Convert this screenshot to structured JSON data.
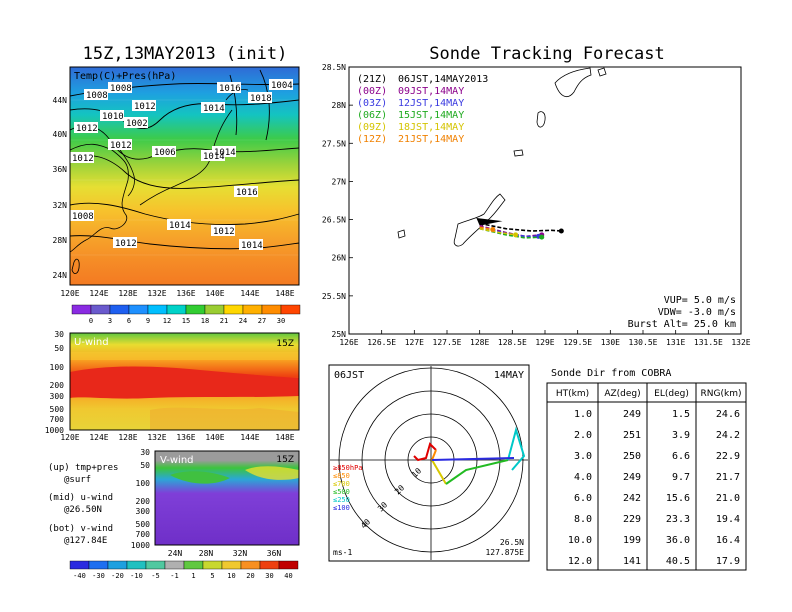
{
  "left_title": "15Z,13MAY2013 (init)",
  "map_panel": {
    "label": "Temp(C)+Pres(hPa)",
    "lat_ticks": [
      "44N",
      "40N",
      "36N",
      "32N",
      "28N",
      "24N"
    ],
    "lon_ticks": [
      "120E",
      "124E",
      "128E",
      "132E",
      "136E",
      "140E",
      "144E",
      "148E"
    ],
    "isobar_labels": [
      "1008",
      "1008",
      "1012",
      "1014",
      "1016",
      "1018",
      "1004",
      "1010",
      "1002",
      "1012",
      "1012",
      "1006",
      "1012",
      "1014",
      "1014",
      "1016",
      "1008",
      "1014",
      "1012",
      "1012",
      "1014"
    ],
    "colorbar": [
      "0",
      "3",
      "6",
      "9",
      "12",
      "15",
      "18",
      "21",
      "24",
      "27",
      "30"
    ],
    "colorbar_colors": [
      "#8a2be2",
      "#6a5acd",
      "#1e5ff0",
      "#1e90ff",
      "#00bfff",
      "#00d2c8",
      "#32cd32",
      "#9acd32",
      "#ffd700",
      "#ffb000",
      "#ff8c00",
      "#ff4500"
    ]
  },
  "u_panel": {
    "label": "U-wind",
    "time": "15Z",
    "p_ticks": [
      "30",
      "50",
      "100",
      "200",
      "300",
      "500",
      "700",
      "1000"
    ],
    "lon_ticks": [
      "120E",
      "124E",
      "128E",
      "132E",
      "136E",
      "140E",
      "144E",
      "148E"
    ]
  },
  "v_panel": {
    "label": "V-wind",
    "time": "15Z",
    "p_ticks": [
      "30",
      "50",
      "100",
      "200",
      "300",
      "500",
      "700",
      "1000"
    ],
    "lat_ticks": [
      "24N",
      "28N",
      "32N",
      "36N"
    ]
  },
  "legend_text": {
    "up": "(up) tmp+pres",
    "up2": "@surf",
    "mid": "(mid) u-wind",
    "mid2": "@26.50N",
    "bot": "(bot) v-wind",
    "bot2": "@127.84E"
  },
  "wind_colorbar": [
    "-40",
    "-30",
    "-20",
    "-10",
    "-5",
    "-1",
    "1",
    "5",
    "10",
    "20",
    "30",
    "40"
  ],
  "forecast": {
    "title": "Sonde Tracking Forecast",
    "lat_ticks": [
      "28.5N",
      "28N",
      "27.5N",
      "27N",
      "26.5N",
      "26N",
      "25.5N",
      "25N"
    ],
    "lon_ticks": [
      "126E",
      "126.5E",
      "127E",
      "127.5E",
      "128E",
      "128.5E",
      "129E",
      "129.5E",
      "130E",
      "130.5E",
      "131E",
      "131.5E",
      "132E"
    ],
    "legend": [
      {
        "code": "(21Z)",
        "text": "06JST,14MAY2013",
        "color": "#000000"
      },
      {
        "code": "(00Z)",
        "text": "09JST,14MAY",
        "color": "#8b008b"
      },
      {
        "code": "(03Z)",
        "text": "12JST,14MAY",
        "color": "#3a3ae0"
      },
      {
        "code": "(06Z)",
        "text": "15JST,14MAY",
        "color": "#1faa1f"
      },
      {
        "code": "(09Z)",
        "text": "18JST,14MAY",
        "color": "#d4c400"
      },
      {
        "code": "(12Z)",
        "text": "21JST,14MAY",
        "color": "#f08000"
      }
    ],
    "params": [
      "VUP= 5.0 m/s",
      "VDW= -3.0 m/s",
      "Burst Alt= 25.0 km"
    ]
  },
  "chart_data": [
    {
      "type": "line",
      "title": "Sonde Tracking Forecast",
      "xlim": [
        126,
        132
      ],
      "ylim": [
        25,
        28.5
      ],
      "series": [
        {
          "name": "(21Z) 06JST,14MAY2013",
          "x": [
            128.0,
            128.4,
            128.8,
            129.1,
            129.25
          ],
          "y": [
            26.45,
            26.38,
            26.35,
            26.36,
            26.35
          ]
        },
        {
          "name": "(00Z) 09JST,14MAY",
          "x": [
            128.0,
            128.4,
            128.7,
            128.95
          ],
          "y": [
            26.42,
            26.33,
            26.28,
            26.3
          ]
        },
        {
          "name": "(03Z) 12JST,14MAY",
          "x": [
            128.0,
            128.4,
            128.7,
            128.9
          ],
          "y": [
            26.4,
            26.32,
            26.28,
            26.28
          ]
        },
        {
          "name": "(06Z) 15JST,14MAY",
          "x": [
            128.0,
            128.4,
            128.7,
            128.95
          ],
          "y": [
            26.38,
            26.3,
            26.26,
            26.27
          ]
        },
        {
          "name": "(09Z) 18JST,14MAY",
          "x": [
            128.0,
            128.3,
            128.55
          ],
          "y": [
            26.38,
            26.33,
            26.3
          ]
        },
        {
          "name": "(12Z) 21JST,14MAY",
          "x": [
            128.0,
            128.2
          ],
          "y": [
            26.4,
            26.37
          ]
        }
      ]
    },
    {
      "type": "table",
      "title": "Sonde Dir from COBRA",
      "columns": [
        "HT(km)",
        "AZ(deg)",
        "EL(deg)",
        "RNG(km)"
      ],
      "rows": [
        [
          "1.0",
          "249",
          "1.5",
          "24.6"
        ],
        [
          "2.0",
          "251",
          "3.9",
          "24.2"
        ],
        [
          "3.0",
          "250",
          "6.6",
          "22.9"
        ],
        [
          "4.0",
          "249",
          "9.7",
          "21.7"
        ],
        [
          "6.0",
          "242",
          "15.6",
          "21.0"
        ],
        [
          "8.0",
          "229",
          "23.3",
          "19.4"
        ],
        [
          "10.0",
          "199",
          "36.0",
          "16.4"
        ],
        [
          "12.0",
          "141",
          "40.5",
          "17.9"
        ]
      ]
    }
  ],
  "hodograph": {
    "left": "06JST",
    "right": "14MAY",
    "ring_labels": [
      "10",
      "20",
      "30",
      "40"
    ],
    "levels": [
      {
        "label": "≥850hPa",
        "color": "#e00000"
      },
      {
        "label": "≤850",
        "color": "#ff8c00"
      },
      {
        "label": "≤700",
        "color": "#d8c800"
      },
      {
        "label": "≤500",
        "color": "#22bb22"
      },
      {
        "label": "≤250",
        "color": "#00c8c8"
      },
      {
        "label": "≤100",
        "color": "#2a2ae0"
      }
    ],
    "unit": "ms-1",
    "loc1": "26.5N",
    "loc2": "127.875E"
  }
}
